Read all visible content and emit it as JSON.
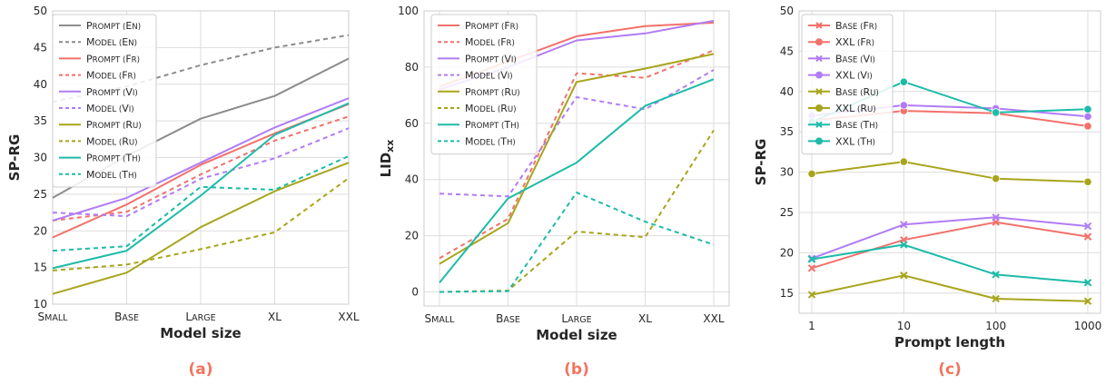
{
  "colors": {
    "en": "#8c8c8c",
    "fr": "#f2716b",
    "vi": "#b07cf5",
    "ru": "#a8a51c",
    "th": "#1dbba8",
    "grid": "#dddddd",
    "caption": "#f2745e"
  },
  "chart_data": [
    {
      "type": "line",
      "panel_label": "(a)",
      "xlabel": "Model size",
      "ylabel": "SP-RG",
      "categories": [
        "Small",
        "Base",
        "Large",
        "XL",
        "XXL"
      ],
      "ylim": [
        10,
        50
      ],
      "yticks": [
        10,
        15,
        20,
        25,
        30,
        35,
        40,
        45,
        50
      ],
      "legend_position": "upper-left",
      "series": [
        {
          "name": "Prompt (En)",
          "values": [
            24.5,
            30.2,
            35.3,
            38.4,
            43.5
          ],
          "color": "#8c8c8c",
          "dash": false
        },
        {
          "name": "Model (En)",
          "values": [
            37.6,
            39.7,
            42.6,
            45.0,
            46.7
          ],
          "color": "#8c8c8c",
          "dash": true
        },
        {
          "name": "Prompt (Fr)",
          "values": [
            19.1,
            23.6,
            29.0,
            33.3,
            37.3
          ],
          "color": "#f2716b",
          "dash": false
        },
        {
          "name": "Model (Fr)",
          "values": [
            21.4,
            22.6,
            27.7,
            32.3,
            35.6
          ],
          "color": "#f2716b",
          "dash": true
        },
        {
          "name": "Prompt (Vi)",
          "values": [
            21.4,
            24.5,
            29.3,
            34.1,
            38.1
          ],
          "color": "#b07cf5",
          "dash": false
        },
        {
          "name": "Model (Vi)",
          "values": [
            22.5,
            22.0,
            27.1,
            29.9,
            34.0
          ],
          "color": "#b07cf5",
          "dash": true
        },
        {
          "name": "Prompt (Ru)",
          "values": [
            11.4,
            14.3,
            20.5,
            25.4,
            29.3
          ],
          "color": "#a8a51c",
          "dash": false
        },
        {
          "name": "Model (Ru)",
          "values": [
            14.6,
            15.4,
            17.5,
            19.8,
            27.2
          ],
          "color": "#a8a51c",
          "dash": true
        },
        {
          "name": "Prompt (Th)",
          "values": [
            14.9,
            17.3,
            24.8,
            33.1,
            37.4
          ],
          "color": "#1dbba8",
          "dash": false
        },
        {
          "name": "Model (Th)",
          "values": [
            17.3,
            17.9,
            26.0,
            25.6,
            30.2
          ],
          "color": "#1dbba8",
          "dash": true
        }
      ]
    },
    {
      "type": "line",
      "panel_label": "(b)",
      "xlabel": "Model size",
      "ylabel": "LIDxx",
      "categories": [
        "Small",
        "Base",
        "Large",
        "XL",
        "XXL"
      ],
      "ylim": [
        -5,
        100
      ],
      "yticks": [
        0,
        20,
        40,
        60,
        80,
        100
      ],
      "legend_position": "upper-left",
      "series": [
        {
          "name": "Prompt (Fr)",
          "values": [
            73,
            82,
            91,
            94.6,
            95.8
          ],
          "color": "#f2716b",
          "dash": false
        },
        {
          "name": "Model (Fr)",
          "values": [
            12,
            26,
            77.8,
            76.2,
            86
          ],
          "color": "#f2716b",
          "dash": true
        },
        {
          "name": "Prompt (Vi)",
          "values": [
            72,
            80,
            89.5,
            92,
            96.5
          ],
          "color": "#b07cf5",
          "dash": false
        },
        {
          "name": "Model (Vi)",
          "values": [
            35,
            34,
            69.3,
            65,
            79
          ],
          "color": "#b07cf5",
          "dash": true
        },
        {
          "name": "Prompt (Ru)",
          "values": [
            10,
            24.5,
            74.7,
            79.5,
            84.7
          ],
          "color": "#a8a51c",
          "dash": false
        },
        {
          "name": "Model (Ru)",
          "values": [
            0,
            0.5,
            21.5,
            19.5,
            57.5
          ],
          "color": "#a8a51c",
          "dash": true
        },
        {
          "name": "Prompt (Th)",
          "values": [
            3.3,
            33.3,
            46,
            66.2,
            75.7
          ],
          "color": "#1dbba8",
          "dash": false
        },
        {
          "name": "Model (Th)",
          "values": [
            0,
            0.3,
            35.4,
            25,
            16.8
          ],
          "color": "#1dbba8",
          "dash": true
        }
      ]
    },
    {
      "type": "line",
      "panel_label": "(c)",
      "xlabel": "Prompt length",
      "ylabel": "SP-RG",
      "categories": [
        "1",
        "10",
        "100",
        "1000"
      ],
      "ylim": [
        12.5,
        50
      ],
      "yticks": [
        15,
        20,
        25,
        30,
        35,
        40,
        45,
        50
      ],
      "legend_position": "upper-left",
      "series": [
        {
          "name": "Base (Fr)",
          "values": [
            18.1,
            21.6,
            23.8,
            22.0
          ],
          "color": "#f2716b",
          "marker": "x"
        },
        {
          "name": "XXL (Fr)",
          "values": [
            36.4,
            37.6,
            37.3,
            35.7
          ],
          "color": "#f2716b",
          "marker": "o"
        },
        {
          "name": "Base (Vi)",
          "values": [
            19.3,
            23.5,
            24.4,
            23.3
          ],
          "color": "#b07cf5",
          "marker": "x"
        },
        {
          "name": "XXL (Vi)",
          "values": [
            37.0,
            38.3,
            37.9,
            36.9
          ],
          "color": "#b07cf5",
          "marker": "o"
        },
        {
          "name": "Base (Ru)",
          "values": [
            14.8,
            17.2,
            14.3,
            14.0
          ],
          "color": "#a8a51c",
          "marker": "x"
        },
        {
          "name": "XXL (Ru)",
          "values": [
            29.8,
            31.3,
            29.2,
            28.8
          ],
          "color": "#a8a51c",
          "marker": "o"
        },
        {
          "name": "Base (Th)",
          "values": [
            19.2,
            21.0,
            17.3,
            16.3
          ],
          "color": "#1dbba8",
          "marker": "x"
        },
        {
          "name": "XXL (Th)",
          "values": [
            36.2,
            41.2,
            37.4,
            37.8
          ],
          "color": "#1dbba8",
          "marker": "o"
        }
      ]
    }
  ]
}
